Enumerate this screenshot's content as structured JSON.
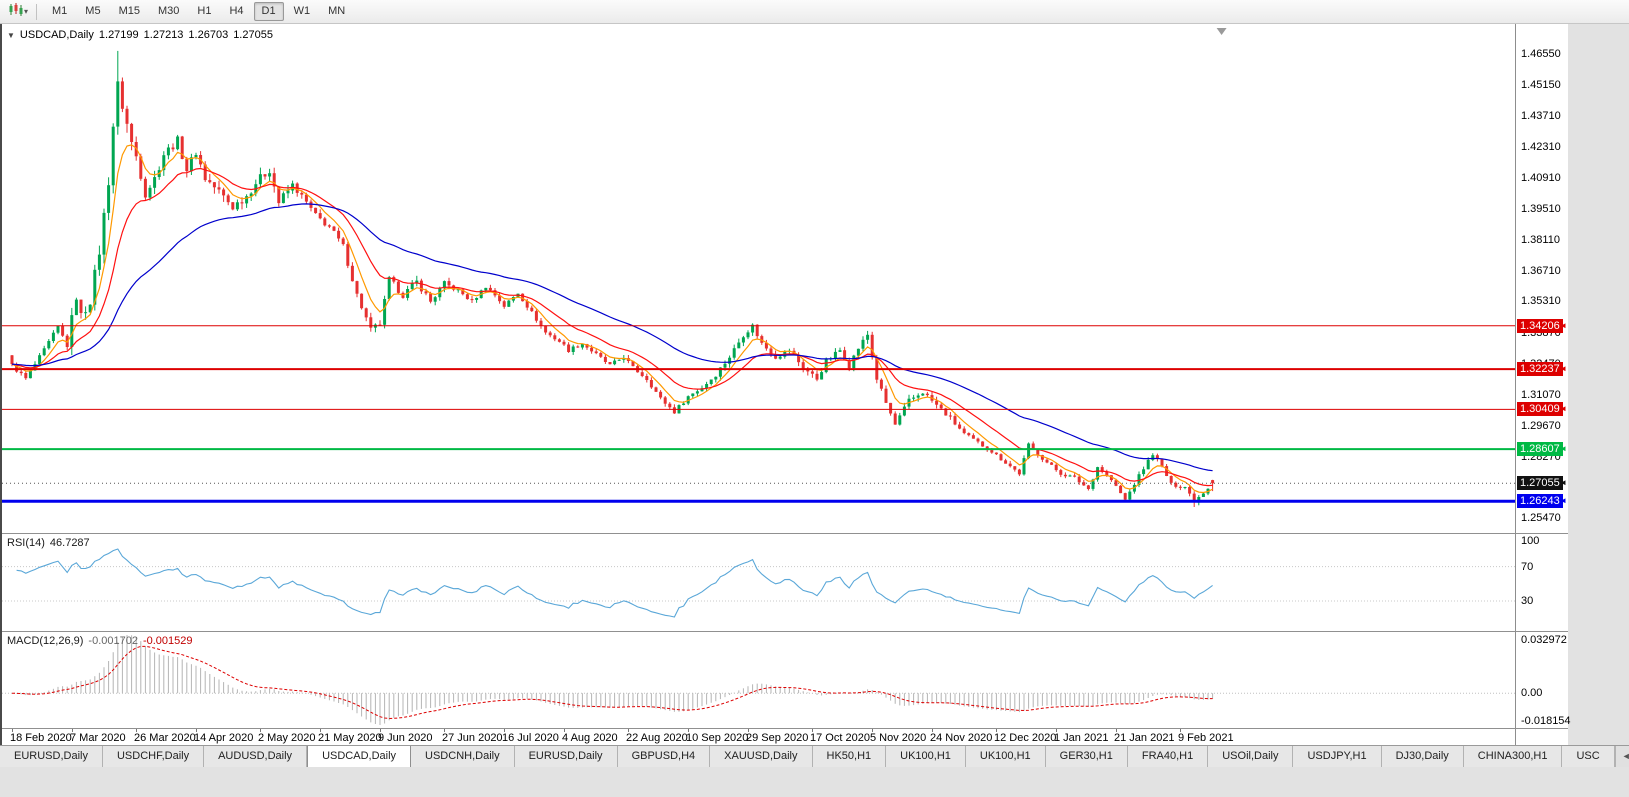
{
  "app": {
    "name": "MetaTrader terminal",
    "window_bg": "#e2e2e2"
  },
  "toolbar": {
    "timeframes": [
      {
        "label": "M1",
        "active": false
      },
      {
        "label": "M5",
        "active": false
      },
      {
        "label": "M15",
        "active": false
      },
      {
        "label": "M30",
        "active": false
      },
      {
        "label": "H1",
        "active": false
      },
      {
        "label": "H4",
        "active": false
      },
      {
        "label": "D1",
        "active": true
      },
      {
        "label": "W1",
        "active": false
      },
      {
        "label": "MN",
        "active": false
      }
    ]
  },
  "chart": {
    "info": {
      "collapse_icon": "▼",
      "symbol": "USDCAD,Daily",
      "open": "1.27199",
      "high": "1.27213",
      "low": "1.26703",
      "close": "1.27055"
    },
    "price_axis_ticks": [
      "1.46550",
      "1.45150",
      "1.43710",
      "1.42310",
      "1.40910",
      "1.39510",
      "1.38110",
      "1.36710",
      "1.35310",
      "1.33870",
      "1.32470",
      "1.31070",
      "1.29670",
      "1.28270",
      "1.26870",
      "1.25470"
    ],
    "current_price": {
      "value": 1.27055,
      "label": "1.27055",
      "badge_bg": "#111111"
    },
    "hlines": [
      {
        "value": 1.34206,
        "label": "1.34206",
        "color": "#dd0000",
        "width": 1
      },
      {
        "value": 1.32237,
        "label": "1.32237",
        "color": "#dd0000",
        "width": 2
      },
      {
        "value": 1.30409,
        "label": "1.30409",
        "color": "#dd0000",
        "width": 1
      },
      {
        "value": 1.28607,
        "label": "1.28607",
        "color": "#00b944",
        "width": 2
      },
      {
        "value": 1.26243,
        "label": "1.26243",
        "color": "#0000ee",
        "width": 3
      }
    ],
    "colors": {
      "up": "#00a651",
      "down": "#e63030",
      "ma_fast": "#ff9900",
      "ma_mid": "#ff1111",
      "ma_slow": "#0000cc",
      "rsi": "#5aa7d8",
      "macd_hist": "#b4b4b4",
      "macd_signal": "#dd0000"
    }
  },
  "rsi": {
    "label": "RSI(14)",
    "value": "46.7287",
    "axis_levels": [
      "100",
      "70",
      "30"
    ],
    "level_values": [
      100,
      70,
      30
    ]
  },
  "macd": {
    "label": "MACD(12,26,9)",
    "main_value": "-0.001702",
    "signal_value": "-0.001529",
    "axis_max": "0.032972",
    "axis_zero": "0.00",
    "axis_min": "-0.018154"
  },
  "date_axis": {
    "labels": [
      "18 Feb 2020",
      "7 Mar 2020",
      "26 Mar 2020",
      "14 Apr 2020",
      "2 May 2020",
      "21 May 2020",
      "9 Jun 2020",
      "27 Jun 2020",
      "16 Jul 2020",
      "4 Aug 2020",
      "22 Aug 2020",
      "10 Sep 2020",
      "29 Sep 2020",
      "17 Oct 2020",
      "5 Nov 2020",
      "24 Nov 2020",
      "12 Dec 2020",
      "1 Jan 2021",
      "21 Jan 2021",
      "9 Feb 2021"
    ],
    "bar_indexes": [
      0,
      13,
      27,
      40,
      54,
      67,
      80,
      94,
      107,
      120,
      134,
      147,
      160,
      174,
      187,
      200,
      214,
      227,
      240,
      254
    ]
  },
  "tabs": {
    "scroll_icon": "◄",
    "items": [
      {
        "label": "EURUSD,Daily",
        "active": false
      },
      {
        "label": "USDCHF,Daily",
        "active": false
      },
      {
        "label": "AUDUSD,Daily",
        "active": false
      },
      {
        "label": "USDCAD,Daily",
        "active": true
      },
      {
        "label": "USDCNH,Daily",
        "active": false
      },
      {
        "label": "EURUSD,Daily",
        "active": false
      },
      {
        "label": "GBPUSD,H4",
        "active": false
      },
      {
        "label": "XAUUSD,Daily",
        "active": false
      },
      {
        "label": "HK50,H1",
        "active": false
      },
      {
        "label": "UK100,H1",
        "active": false
      },
      {
        "label": "UK100,H1",
        "active": false
      },
      {
        "label": "GER30,H1",
        "active": false
      },
      {
        "label": "FRA40,H1",
        "active": false
      },
      {
        "label": "USOil,Daily",
        "active": false
      },
      {
        "label": "USDJPY,H1",
        "active": false
      },
      {
        "label": "DJ30,Daily",
        "active": false
      },
      {
        "label": "CHINA300,H1",
        "active": false
      },
      {
        "label": "USC",
        "active": false
      }
    ]
  },
  "chart_data": {
    "type": "candlestick",
    "title": "USDCAD,Daily",
    "symbol": "USDCAD",
    "timeframe": "Daily",
    "bars_total": 262,
    "y_range": [
      1.248,
      1.479
    ],
    "last_candle": {
      "open": 1.27199,
      "high": 1.27213,
      "low": 1.26703,
      "close": 1.27055
    },
    "extremes": {
      "high": 1.4668,
      "low": 1.2598
    },
    "x_labels": [
      "18 Feb 2020",
      "7 Mar 2020",
      "26 Mar 2020",
      "14 Apr 2020",
      "2 May 2020",
      "21 May 2020",
      "9 Jun 2020",
      "27 Jun 2020",
      "16 Jul 2020",
      "4 Aug 2020",
      "22 Aug 2020",
      "10 Sep 2020",
      "29 Sep 2020",
      "17 Oct 2020",
      "5 Nov 2020",
      "24 Nov 2020",
      "12 Dec 2020",
      "1 Jan 2021",
      "21 Jan 2021",
      "9 Feb 2021"
    ],
    "hline_levels": [
      1.34206,
      1.32237,
      1.30409,
      1.28607,
      1.26243
    ],
    "close_anchors": [
      [
        0,
        1.324
      ],
      [
        3,
        1.318
      ],
      [
        7,
        1.331
      ],
      [
        10,
        1.3415
      ],
      [
        12,
        1.333
      ],
      [
        14,
        1.356
      ],
      [
        15,
        1.346
      ],
      [
        17,
        1.354
      ],
      [
        19,
        1.376
      ],
      [
        21,
        1.408
      ],
      [
        22,
        1.433
      ],
      [
        23,
        1.451
      ],
      [
        24,
        1.442
      ],
      [
        26,
        1.425
      ],
      [
        27,
        1.419
      ],
      [
        29,
        1.402
      ],
      [
        31,
        1.409
      ],
      [
        33,
        1.42
      ],
      [
        36,
        1.426
      ],
      [
        38,
        1.413
      ],
      [
        40,
        1.421
      ],
      [
        42,
        1.409
      ],
      [
        45,
        1.403
      ],
      [
        48,
        1.396
      ],
      [
        51,
        1.401
      ],
      [
        53,
        1.407
      ],
      [
        56,
        1.413
      ],
      [
        58,
        1.398
      ],
      [
        61,
        1.406
      ],
      [
        64,
        1.398
      ],
      [
        66,
        1.392
      ],
      [
        69,
        1.387
      ],
      [
        72,
        1.378
      ],
      [
        75,
        1.356
      ],
      [
        78,
        1.34
      ],
      [
        80,
        1.343
      ],
      [
        82,
        1.363
      ],
      [
        85,
        1.356
      ],
      [
        88,
        1.362
      ],
      [
        91,
        1.353
      ],
      [
        94,
        1.361
      ],
      [
        97,
        1.358
      ],
      [
        100,
        1.353
      ],
      [
        103,
        1.36
      ],
      [
        105,
        1.356
      ],
      [
        107,
        1.351
      ],
      [
        110,
        1.357
      ],
      [
        113,
        1.348
      ],
      [
        116,
        1.339
      ],
      [
        119,
        1.335
      ],
      [
        121,
        1.331
      ],
      [
        124,
        1.334
      ],
      [
        127,
        1.329
      ],
      [
        130,
        1.324
      ],
      [
        133,
        1.328
      ],
      [
        135,
        1.323
      ],
      [
        138,
        1.318
      ],
      [
        141,
        1.309
      ],
      [
        144,
        1.303
      ],
      [
        147,
        1.31
      ],
      [
        150,
        1.314
      ],
      [
        153,
        1.32
      ],
      [
        156,
        1.328
      ],
      [
        159,
        1.338
      ],
      [
        161,
        1.342
      ],
      [
        163,
        1.334
      ],
      [
        166,
        1.328
      ],
      [
        169,
        1.331
      ],
      [
        172,
        1.323
      ],
      [
        175,
        1.318
      ],
      [
        177,
        1.326
      ],
      [
        180,
        1.331
      ],
      [
        182,
        1.324
      ],
      [
        184,
        1.332
      ],
      [
        186,
        1.338
      ],
      [
        188,
        1.318
      ],
      [
        190,
        1.307
      ],
      [
        192,
        1.297
      ],
      [
        195,
        1.308
      ],
      [
        198,
        1.312
      ],
      [
        201,
        1.306
      ],
      [
        204,
        1.3
      ],
      [
        207,
        1.293
      ],
      [
        210,
        1.289
      ],
      [
        213,
        1.285
      ],
      [
        216,
        1.28
      ],
      [
        219,
        1.275
      ],
      [
        221,
        1.288
      ],
      [
        223,
        1.284
      ],
      [
        225,
        1.28
      ],
      [
        228,
        1.275
      ],
      [
        231,
        1.273
      ],
      [
        234,
        1.268
      ],
      [
        236,
        1.278
      ],
      [
        239,
        1.272
      ],
      [
        242,
        1.263
      ],
      [
        245,
        1.274
      ],
      [
        248,
        1.284
      ],
      [
        250,
        1.278
      ],
      [
        252,
        1.27
      ],
      [
        255,
        1.269
      ],
      [
        257,
        1.2625
      ],
      [
        259,
        1.2665
      ],
      [
        261,
        1.27055
      ]
    ],
    "moving_averages": [
      {
        "period": 6,
        "color_key": "ma_fast"
      },
      {
        "period": 16,
        "color_key": "ma_mid"
      },
      {
        "period": 45,
        "color_key": "ma_slow"
      }
    ],
    "indicators": [
      {
        "name": "RSI",
        "period": 14,
        "current": 46.7287,
        "levels": [
          30,
          70
        ]
      },
      {
        "name": "MACD",
        "fast": 12,
        "slow": 26,
        "signal": 9,
        "current_main": -0.001702,
        "current_signal": -0.001529,
        "scale_max": 0.032972,
        "scale_min": -0.018154
      }
    ]
  }
}
